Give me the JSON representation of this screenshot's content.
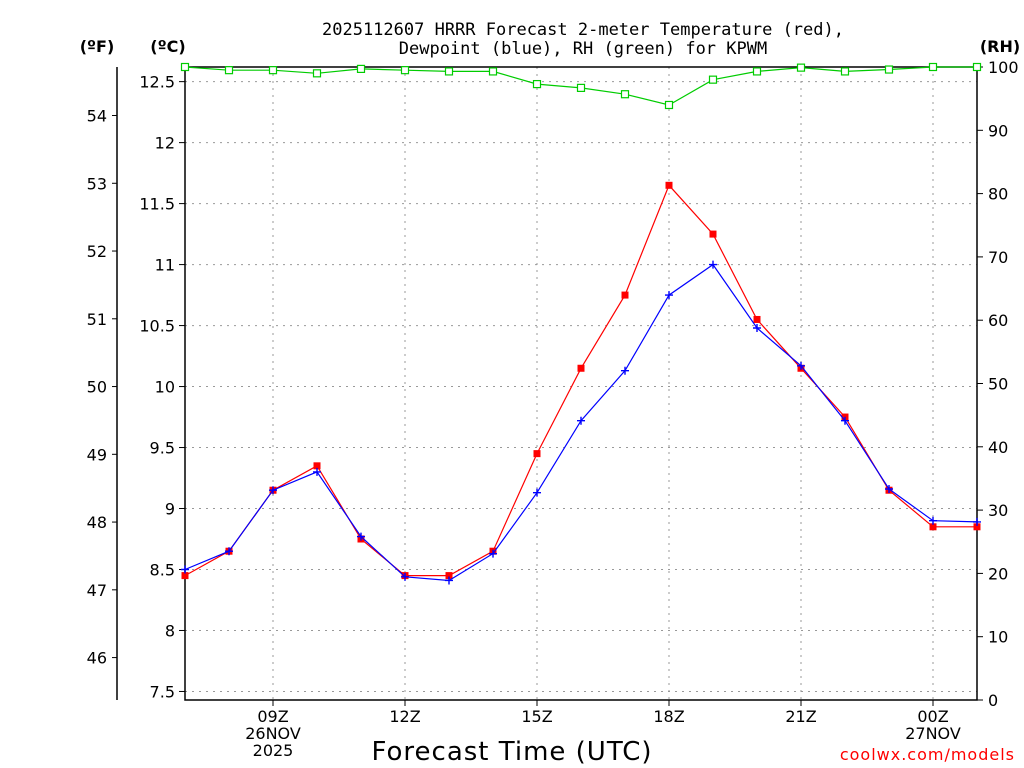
{
  "chart_data": {
    "type": "line",
    "title_line1": "2025112607 HRRR Forecast 2-meter Temperature (red),",
    "title_line2": "Dewpoint (blue), RH (green) for KPWM",
    "xlabel": "Forecast Time (UTC)",
    "credit": "coolwx.com/models",
    "units": {
      "fahrenheit": "(ºF)",
      "celsius": "(ºC)",
      "rh": "(RH)"
    },
    "hours": [
      7,
      8,
      9,
      10,
      11,
      12,
      13,
      14,
      15,
      16,
      17,
      18,
      19,
      20,
      21,
      22,
      23,
      24,
      25
    ],
    "xlim": [
      7,
      25
    ],
    "x_ticks": [
      {
        "h": 9,
        "lines": [
          "09Z",
          "26NOV",
          "2025"
        ]
      },
      {
        "h": 12,
        "lines": [
          "12Z"
        ]
      },
      {
        "h": 15,
        "lines": [
          "15Z"
        ]
      },
      {
        "h": 18,
        "lines": [
          "18Z"
        ]
      },
      {
        "h": 21,
        "lines": [
          "21Z"
        ]
      },
      {
        "h": 24,
        "lines": [
          "00Z",
          "27NOV"
        ]
      }
    ],
    "ylim_c": [
      7.43,
      12.62
    ],
    "yticks_c": [
      "7.5",
      "8",
      "8.5",
      "9",
      "9.5",
      "10",
      "10.5",
      "11",
      "11.5",
      "12",
      "12.5"
    ],
    "yticks_f": [
      "46",
      "47",
      "48",
      "49",
      "50",
      "51",
      "52",
      "53",
      "54"
    ],
    "ylim_rh": [
      0,
      100
    ],
    "yticks_rh": [
      "0",
      "10",
      "20",
      "30",
      "40",
      "50",
      "60",
      "70",
      "80",
      "90",
      "100"
    ],
    "series": [
      {
        "name": "Temperature",
        "unit": "C",
        "color": "#ff0000",
        "marker": "square-filled",
        "values": [
          8.45,
          8.65,
          9.15,
          9.35,
          8.75,
          8.45,
          8.45,
          8.65,
          9.45,
          10.15,
          10.75,
          11.65,
          11.25,
          10.55,
          10.15,
          9.75,
          9.15,
          8.85,
          8.85
        ]
      },
      {
        "name": "Dewpoint",
        "unit": "C",
        "color": "#0000ff",
        "marker": "plus",
        "values": [
          8.5,
          8.65,
          9.15,
          9.3,
          8.77,
          8.44,
          8.41,
          8.63,
          9.13,
          9.72,
          10.13,
          10.75,
          11.0,
          10.48,
          10.17,
          9.72,
          9.16,
          8.9,
          8.89
        ]
      },
      {
        "name": "RH",
        "unit": "%",
        "color": "#00cc00",
        "marker": "square-open",
        "values": [
          100,
          99.5,
          99.5,
          99,
          99.7,
          99.5,
          99.3,
          99.3,
          97.3,
          96.7,
          95.7,
          94,
          98,
          99.3,
          99.9,
          99.3,
          99.6,
          100,
          100
        ]
      }
    ]
  }
}
